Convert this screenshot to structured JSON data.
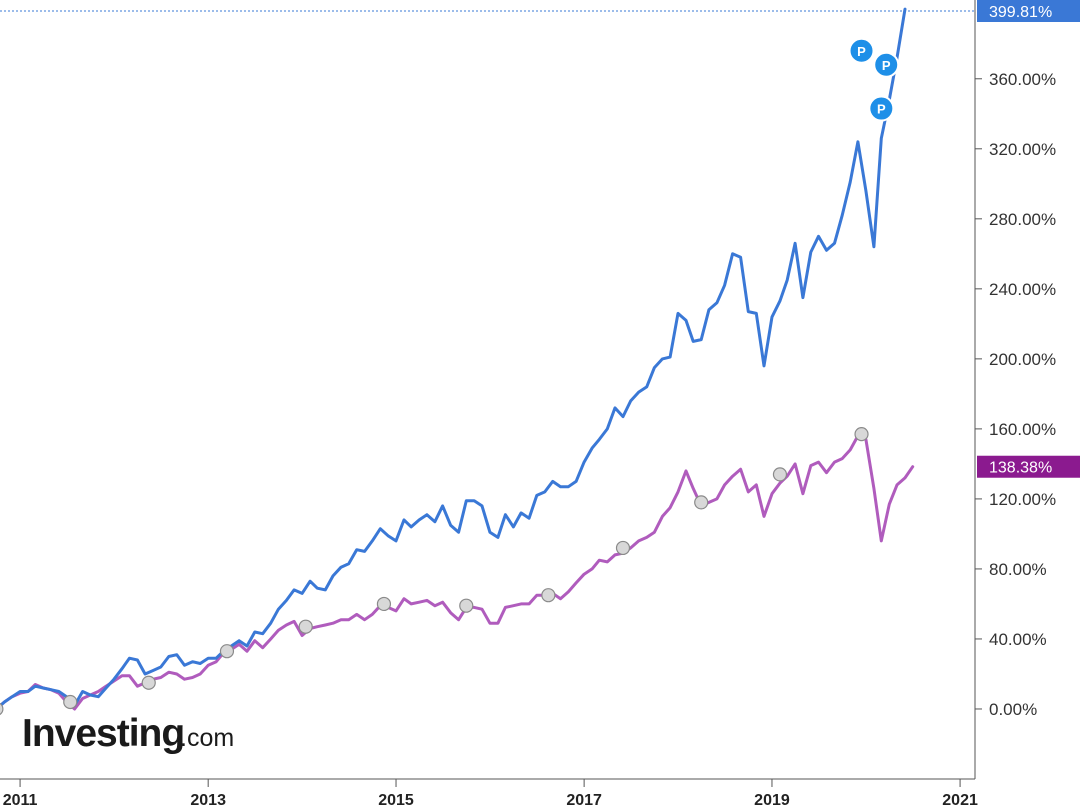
{
  "chart_data": {
    "type": "line",
    "x_unit": "date",
    "xlim": [
      "2010-10-15",
      "2021-02-28"
    ],
    "ylim": [
      -40,
      405
    ],
    "y_ticks": [
      0,
      40,
      80,
      120,
      160,
      200,
      240,
      280,
      320,
      360
    ],
    "y_tick_labels": [
      "0.00%",
      "40.00%",
      "80.00%",
      "120.00%",
      "160.00%",
      "200.00%",
      "240.00%",
      "280.00%",
      "320.00%",
      "360.00%"
    ],
    "x_ticks": [
      "2011-01-01",
      "2013-01-01",
      "2015-01-01",
      "2017-01-01",
      "2019-01-01",
      "2021-01-01"
    ],
    "x_tick_labels": [
      "2011",
      "2013",
      "2015",
      "2017",
      "2019",
      "2021"
    ],
    "grid": false,
    "series": [
      {
        "color": "#3a78d6",
        "last_value_label": "399.81%",
        "points": [
          [
            "2010-10-01",
            0
          ],
          [
            "2010-11-01",
            4
          ],
          [
            "2010-12-01",
            7
          ],
          [
            "2011-01-01",
            10
          ],
          [
            "2011-02-01",
            10
          ],
          [
            "2011-03-01",
            13
          ],
          [
            "2011-04-01",
            12
          ],
          [
            "2011-05-01",
            11
          ],
          [
            "2011-06-01",
            10
          ],
          [
            "2011-07-01",
            7
          ],
          [
            "2011-08-01",
            2
          ],
          [
            "2011-09-01",
            10
          ],
          [
            "2011-10-01",
            8
          ],
          [
            "2011-11-01",
            7
          ],
          [
            "2011-12-01",
            12
          ],
          [
            "2012-01-01",
            17
          ],
          [
            "2012-02-01",
            23
          ],
          [
            "2012-03-01",
            29
          ],
          [
            "2012-04-01",
            28
          ],
          [
            "2012-05-01",
            20
          ],
          [
            "2012-06-01",
            22
          ],
          [
            "2012-07-01",
            24
          ],
          [
            "2012-08-01",
            30
          ],
          [
            "2012-09-01",
            31
          ],
          [
            "2012-10-01",
            25
          ],
          [
            "2012-11-01",
            27
          ],
          [
            "2012-12-01",
            26
          ],
          [
            "2013-01-01",
            29
          ],
          [
            "2013-02-01",
            29
          ],
          [
            "2013-03-01",
            33
          ],
          [
            "2013-04-01",
            36
          ],
          [
            "2013-05-01",
            39
          ],
          [
            "2013-06-01",
            36
          ],
          [
            "2013-07-01",
            44
          ],
          [
            "2013-08-01",
            43
          ],
          [
            "2013-09-01",
            49
          ],
          [
            "2013-10-01",
            57
          ],
          [
            "2013-11-01",
            62
          ],
          [
            "2013-12-01",
            68
          ],
          [
            "2014-01-01",
            66
          ],
          [
            "2014-02-01",
            73
          ],
          [
            "2014-03-01",
            69
          ],
          [
            "2014-04-01",
            68
          ],
          [
            "2014-05-01",
            76
          ],
          [
            "2014-06-01",
            81
          ],
          [
            "2014-07-01",
            83
          ],
          [
            "2014-08-01",
            91
          ],
          [
            "2014-09-01",
            90
          ],
          [
            "2014-10-01",
            96
          ],
          [
            "2014-11-01",
            103
          ],
          [
            "2014-12-01",
            99
          ],
          [
            "2015-01-01",
            96
          ],
          [
            "2015-02-01",
            108
          ],
          [
            "2015-03-01",
            104
          ],
          [
            "2015-04-01",
            108
          ],
          [
            "2015-05-01",
            111
          ],
          [
            "2015-06-01",
            107
          ],
          [
            "2015-07-01",
            116
          ],
          [
            "2015-08-01",
            105
          ],
          [
            "2015-09-01",
            101
          ],
          [
            "2015-10-01",
            119
          ],
          [
            "2015-11-01",
            119
          ],
          [
            "2015-12-01",
            116
          ],
          [
            "2016-01-01",
            101
          ],
          [
            "2016-02-01",
            98
          ],
          [
            "2016-03-01",
            111
          ],
          [
            "2016-04-01",
            104
          ],
          [
            "2016-05-01",
            112
          ],
          [
            "2016-06-01",
            109
          ],
          [
            "2016-07-01",
            122
          ],
          [
            "2016-08-01",
            124
          ],
          [
            "2016-09-01",
            130
          ],
          [
            "2016-10-01",
            127
          ],
          [
            "2016-11-01",
            127
          ],
          [
            "2016-12-01",
            130
          ],
          [
            "2017-01-01",
            141
          ],
          [
            "2017-02-01",
            149
          ],
          [
            "2017-03-01",
            154
          ],
          [
            "2017-04-01",
            160
          ],
          [
            "2017-05-01",
            172
          ],
          [
            "2017-06-01",
            167
          ],
          [
            "2017-07-01",
            176
          ],
          [
            "2017-08-01",
            181
          ],
          [
            "2017-09-01",
            184
          ],
          [
            "2017-10-01",
            195
          ],
          [
            "2017-11-01",
            200
          ],
          [
            "2017-12-01",
            201
          ],
          [
            "2018-01-01",
            226
          ],
          [
            "2018-02-01",
            222
          ],
          [
            "2018-03-01",
            210
          ],
          [
            "2018-04-01",
            211
          ],
          [
            "2018-05-01",
            228
          ],
          [
            "2018-06-01",
            232
          ],
          [
            "2018-07-01",
            242
          ],
          [
            "2018-08-01",
            260
          ],
          [
            "2018-09-01",
            258
          ],
          [
            "2018-10-01",
            227
          ],
          [
            "2018-11-01",
            226
          ],
          [
            "2018-12-01",
            196
          ],
          [
            "2019-01-01",
            224
          ],
          [
            "2019-02-01",
            233
          ],
          [
            "2019-03-01",
            245
          ],
          [
            "2019-04-01",
            266
          ],
          [
            "2019-05-01",
            235
          ],
          [
            "2019-06-01",
            261
          ],
          [
            "2019-07-01",
            270
          ],
          [
            "2019-08-01",
            262
          ],
          [
            "2019-09-01",
            266
          ],
          [
            "2019-10-01",
            282
          ],
          [
            "2019-11-01",
            301
          ],
          [
            "2019-12-01",
            324
          ],
          [
            "2020-01-01",
            296
          ],
          [
            "2020-02-01",
            264
          ],
          [
            "2020-03-01",
            326
          ],
          [
            "2020-04-01",
            348
          ],
          [
            "2020-05-01",
            372
          ],
          [
            "2020-06-01",
            399.81
          ]
        ],
        "markers": [
          {
            "date": "2019-12-15",
            "value": 376,
            "label": "P"
          },
          {
            "date": "2020-03-20",
            "value": 368,
            "label": "P"
          },
          {
            "date": "2020-03-01",
            "value": 343,
            "label": "P"
          }
        ]
      },
      {
        "color": "#b05cbd",
        "last_value_label": "138.38%",
        "points": [
          [
            "2010-10-01",
            0
          ],
          [
            "2010-11-01",
            4
          ],
          [
            "2010-12-01",
            7
          ],
          [
            "2011-01-01",
            9
          ],
          [
            "2011-02-01",
            10
          ],
          [
            "2011-03-01",
            14
          ],
          [
            "2011-04-01",
            12
          ],
          [
            "2011-05-01",
            11
          ],
          [
            "2011-06-01",
            9
          ],
          [
            "2011-07-01",
            4
          ],
          [
            "2011-08-01",
            0
          ],
          [
            "2011-09-01",
            6
          ],
          [
            "2011-10-01",
            8
          ],
          [
            "2011-11-01",
            10
          ],
          [
            "2011-12-01",
            13
          ],
          [
            "2012-01-01",
            16
          ],
          [
            "2012-02-01",
            19
          ],
          [
            "2012-03-01",
            19
          ],
          [
            "2012-04-01",
            13
          ],
          [
            "2012-05-01",
            15
          ],
          [
            "2012-06-01",
            17
          ],
          [
            "2012-07-01",
            18
          ],
          [
            "2012-08-01",
            21
          ],
          [
            "2012-09-01",
            20
          ],
          [
            "2012-10-01",
            17
          ],
          [
            "2012-11-01",
            18
          ],
          [
            "2012-12-01",
            20
          ],
          [
            "2013-01-01",
            25
          ],
          [
            "2013-02-01",
            27
          ],
          [
            "2013-03-01",
            32
          ],
          [
            "2013-04-01",
            34
          ],
          [
            "2013-05-01",
            37
          ],
          [
            "2013-06-01",
            33
          ],
          [
            "2013-07-01",
            39
          ],
          [
            "2013-08-01",
            35
          ],
          [
            "2013-09-01",
            40
          ],
          [
            "2013-10-01",
            45
          ],
          [
            "2013-11-01",
            48
          ],
          [
            "2013-12-01",
            50
          ],
          [
            "2014-01-01",
            42
          ],
          [
            "2014-02-01",
            46
          ],
          [
            "2014-03-01",
            47
          ],
          [
            "2014-04-01",
            48
          ],
          [
            "2014-05-01",
            49
          ],
          [
            "2014-06-01",
            51
          ],
          [
            "2014-07-01",
            51
          ],
          [
            "2014-08-01",
            54
          ],
          [
            "2014-09-01",
            51
          ],
          [
            "2014-10-01",
            54
          ],
          [
            "2014-11-01",
            59
          ],
          [
            "2014-12-01",
            58
          ],
          [
            "2015-01-01",
            56
          ],
          [
            "2015-02-01",
            63
          ],
          [
            "2015-03-01",
            60
          ],
          [
            "2015-04-01",
            61
          ],
          [
            "2015-05-01",
            62
          ],
          [
            "2015-06-01",
            59
          ],
          [
            "2015-07-01",
            61
          ],
          [
            "2015-08-01",
            55
          ],
          [
            "2015-09-01",
            51
          ],
          [
            "2015-10-01",
            58
          ],
          [
            "2015-11-01",
            58
          ],
          [
            "2015-12-01",
            57
          ],
          [
            "2016-01-01",
            49
          ],
          [
            "2016-02-01",
            49
          ],
          [
            "2016-03-01",
            58
          ],
          [
            "2016-04-01",
            59
          ],
          [
            "2016-05-01",
            60
          ],
          [
            "2016-06-01",
            60
          ],
          [
            "2016-07-01",
            65
          ],
          [
            "2016-08-01",
            65
          ],
          [
            "2016-09-01",
            66
          ],
          [
            "2016-10-01",
            63
          ],
          [
            "2016-11-01",
            67
          ],
          [
            "2016-12-01",
            72
          ],
          [
            "2017-01-01",
            77
          ],
          [
            "2017-02-01",
            80
          ],
          [
            "2017-03-01",
            85
          ],
          [
            "2017-04-01",
            84
          ],
          [
            "2017-05-01",
            88
          ],
          [
            "2017-06-01",
            89
          ],
          [
            "2017-07-01",
            92
          ],
          [
            "2017-08-01",
            96
          ],
          [
            "2017-09-01",
            98
          ],
          [
            "2017-10-01",
            101
          ],
          [
            "2017-11-01",
            110
          ],
          [
            "2017-12-01",
            115
          ],
          [
            "2018-01-01",
            124
          ],
          [
            "2018-02-01",
            136
          ],
          [
            "2018-03-01",
            126
          ],
          [
            "2018-04-01",
            116
          ],
          [
            "2018-05-01",
            118
          ],
          [
            "2018-06-01",
            120
          ],
          [
            "2018-07-01",
            128
          ],
          [
            "2018-08-01",
            133
          ],
          [
            "2018-09-01",
            137
          ],
          [
            "2018-10-01",
            124
          ],
          [
            "2018-11-01",
            128
          ],
          [
            "2018-12-01",
            110
          ],
          [
            "2019-01-01",
            123
          ],
          [
            "2019-02-01",
            129
          ],
          [
            "2019-03-01",
            133
          ],
          [
            "2019-04-01",
            140
          ],
          [
            "2019-05-01",
            123
          ],
          [
            "2019-06-01",
            139
          ],
          [
            "2019-07-01",
            141
          ],
          [
            "2019-08-01",
            135
          ],
          [
            "2019-09-01",
            141
          ],
          [
            "2019-10-01",
            143
          ],
          [
            "2019-11-01",
            148
          ],
          [
            "2019-12-01",
            156
          ],
          [
            "2020-01-01",
            154
          ],
          [
            "2020-02-01",
            126
          ],
          [
            "2020-03-01",
            96
          ],
          [
            "2020-04-01",
            117
          ],
          [
            "2020-05-01",
            128
          ],
          [
            "2020-06-01",
            132
          ],
          [
            "2020-07-01",
            138.38
          ]
        ],
        "markers": [
          {
            "date": "2010-10-01",
            "value": 0
          },
          {
            "date": "2011-07-15",
            "value": 4
          },
          {
            "date": "2012-05-15",
            "value": 15
          },
          {
            "date": "2013-03-15",
            "value": 33
          },
          {
            "date": "2014-01-15",
            "value": 47
          },
          {
            "date": "2014-11-15",
            "value": 60
          },
          {
            "date": "2015-10-01",
            "value": 59
          },
          {
            "date": "2016-08-15",
            "value": 65
          },
          {
            "date": "2017-06-01",
            "value": 92
          },
          {
            "date": "2018-04-01",
            "value": 118
          },
          {
            "date": "2019-02-01",
            "value": 134
          },
          {
            "date": "2019-12-15",
            "value": 157
          }
        ]
      }
    ]
  },
  "branding": {
    "logo_main": "Investing",
    "logo_suffix": ".com"
  }
}
